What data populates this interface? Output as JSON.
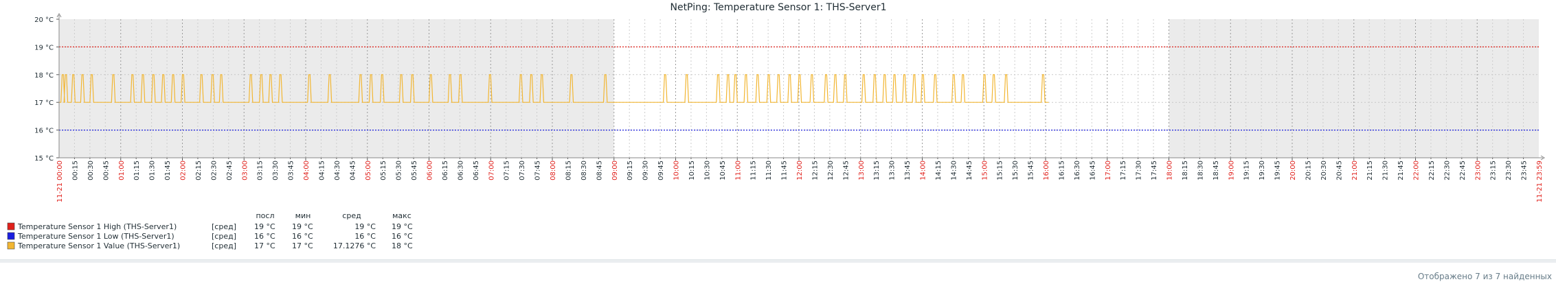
{
  "chart_data": {
    "type": "line",
    "title": "NetPing: Temperature Sensor 1: THS-Server1",
    "y_ticks": [
      "20 °C",
      "19 °C",
      "18 °C",
      "17 °C",
      "16 °C",
      "15 °C"
    ],
    "ylim": [
      15,
      20
    ],
    "y_unit": "°C",
    "x_start_label": "11-21 00:00",
    "x_end_label": "11-21 23:59",
    "x_range_hours": [
      0,
      24
    ],
    "x_tick_labels": [
      "00:15",
      "00:30",
      "00:45",
      "01:00",
      "01:15",
      "01:30",
      "01:45",
      "02:00",
      "02:15",
      "02:30",
      "02:45",
      "03:00",
      "03:15",
      "03:30",
      "03:45",
      "04:00",
      "04:15",
      "04:30",
      "04:45",
      "05:00",
      "05:15",
      "05:30",
      "05:45",
      "06:00",
      "06:15",
      "06:30",
      "06:45",
      "07:00",
      "07:15",
      "07:30",
      "07:45",
      "08:00",
      "08:15",
      "08:30",
      "08:45",
      "09:00",
      "09:15",
      "09:30",
      "09:45",
      "10:00",
      "10:15",
      "10:30",
      "10:45",
      "11:00",
      "11:15",
      "11:30",
      "11:45",
      "12:00",
      "12:15",
      "12:30",
      "12:45",
      "13:00",
      "13:15",
      "13:30",
      "13:45",
      "14:00",
      "14:15",
      "14:30",
      "14:45",
      "15:00",
      "15:15",
      "15:30",
      "15:45",
      "16:00",
      "16:15",
      "16:30",
      "16:45",
      "17:00",
      "17:15",
      "17:30",
      "17:45",
      "18:00",
      "18:15",
      "18:30",
      "18:45",
      "19:00",
      "19:15",
      "19:30",
      "19:45",
      "20:00",
      "20:15",
      "20:30",
      "20:45",
      "21:00",
      "21:15",
      "21:30",
      "21:45",
      "22:00",
      "22:15",
      "22:30",
      "22:45",
      "23:00",
      "23:15",
      "23:30",
      "23:45"
    ],
    "shaded_periods_hours": [
      [
        0,
        9
      ],
      [
        18,
        24
      ]
    ],
    "series": [
      {
        "name": "Temperature Sensor 1 High (THS-Server1)",
        "color": "#e0201b",
        "style": "dotted",
        "x_hours": [
          0,
          24
        ],
        "values": [
          19,
          19
        ]
      },
      {
        "name": "Temperature Sensor 1 Low (THS-Server1)",
        "color": "#1a1ee0",
        "style": "dotted",
        "x_hours": [
          0,
          24
        ],
        "values": [
          16,
          16
        ]
      },
      {
        "name": "Temperature Sensor 1 Value (THS-Server1)",
        "color": "#f2b632",
        "style": "solid",
        "spike_hours_18C": [
          0.05,
          0.1,
          0.22,
          0.37,
          0.52,
          0.87,
          1.18,
          1.35,
          1.52,
          1.68,
          1.84,
          2.0,
          2.3,
          2.48,
          2.62,
          3.1,
          3.27,
          3.42,
          3.58,
          4.05,
          4.38,
          4.88,
          5.05,
          5.23,
          5.54,
          5.72,
          6.02,
          6.33,
          6.5,
          6.98,
          7.48,
          7.65,
          7.82,
          8.3,
          8.85,
          9.82,
          10.17,
          10.68,
          10.84,
          10.96,
          11.13,
          11.32,
          11.5,
          11.66,
          11.84,
          12.0,
          12.2,
          12.43,
          12.58,
          12.74,
          13.04,
          13.22,
          13.38,
          13.54,
          13.7,
          13.86,
          14.0,
          14.2,
          14.5,
          14.65,
          15.0,
          15.15,
          15.35,
          15.95
        ],
        "baseline": 17,
        "peak": 18,
        "end_hour": 16.05
      }
    ]
  },
  "legend": {
    "headers": {
      "last": "посл",
      "min": "мин",
      "avg": "сред",
      "max": "макс"
    },
    "rows": [
      {
        "color": "#e0201b",
        "name": "Temperature Sensor 1 High (THS-Server1)",
        "func": "[сред]",
        "last": "19 °C",
        "min": "19 °C",
        "avg": "19 °C",
        "max": "19 °C"
      },
      {
        "color": "#1a1ee0",
        "name": "Temperature Sensor 1 Low (THS-Server1)",
        "func": "[сред]",
        "last": "16 °C",
        "min": "16 °C",
        "avg": "16 °C",
        "max": "16 °C"
      },
      {
        "color": "#f2b632",
        "name": "Temperature Sensor 1 Value (THS-Server1)",
        "func": "[сред]",
        "last": "17 °C",
        "min": "17 °C",
        "avg": "17.1276 °C",
        "max": "18 °C"
      }
    ]
  },
  "footer": {
    "count_text": "Отображено 7 из 7 найденных"
  }
}
